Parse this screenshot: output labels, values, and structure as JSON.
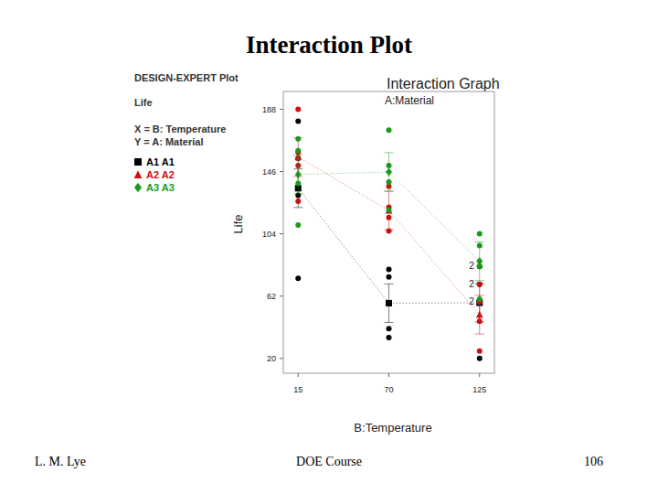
{
  "slide": {
    "title": "Interaction Plot",
    "footer_left": "L. M. Lye",
    "footer_center": "DOE  Course",
    "page": 106
  },
  "chart_data": {
    "type": "line",
    "header_lines": [
      "DESIGN-EXPERT Plot",
      "Life",
      "X = B: Temperature",
      "Y = A: Material"
    ],
    "title": "Interaction Graph",
    "subtitle": "A:Material",
    "x_label": "B:Temperature",
    "y_label": "Life",
    "x": [
      15,
      70,
      125
    ],
    "xlim": [
      6,
      134
    ],
    "xticks": [
      15,
      70,
      125
    ],
    "ylim": [
      10,
      200
    ],
    "yticks": [
      20,
      62,
      104,
      146,
      188
    ],
    "grid": false,
    "line_style": "dotted",
    "series": [
      {
        "name": "A1 A1",
        "color": "#000000",
        "marker": "square",
        "values": [
          134.75,
          57.25,
          57.5
        ],
        "errors": [
          13,
          13,
          13
        ],
        "observations": [
          [
            130,
            155,
            74,
            180
          ],
          [
            34,
            40,
            80,
            75
          ],
          [
            20,
            70,
            82,
            58
          ]
        ]
      },
      {
        "name": "A2 A2",
        "color": "#d01010",
        "marker": "triangle",
        "values": [
          155.75,
          119.75,
          49.5
        ],
        "errors": [
          13,
          13,
          13
        ],
        "observations": [
          [
            150,
            188,
            159,
            126
          ],
          [
            136,
            122,
            106,
            115
          ],
          [
            25,
            70,
            58,
            45
          ]
        ]
      },
      {
        "name": "A3 A3",
        "color": "#1a9a1a",
        "marker": "diamond",
        "values": [
          144,
          145.75,
          85.5
        ],
        "errors": [
          13,
          13,
          13
        ],
        "observations": [
          [
            138,
            110,
            168,
            160
          ],
          [
            174,
            120,
            150,
            139
          ],
          [
            96,
            104,
            82,
            60
          ]
        ]
      }
    ],
    "annotations": [
      {
        "text": "2",
        "x": 125,
        "y": 82
      },
      {
        "text": "2",
        "x": 125,
        "y": 70
      },
      {
        "text": "2",
        "x": 125,
        "y": 58
      }
    ]
  }
}
